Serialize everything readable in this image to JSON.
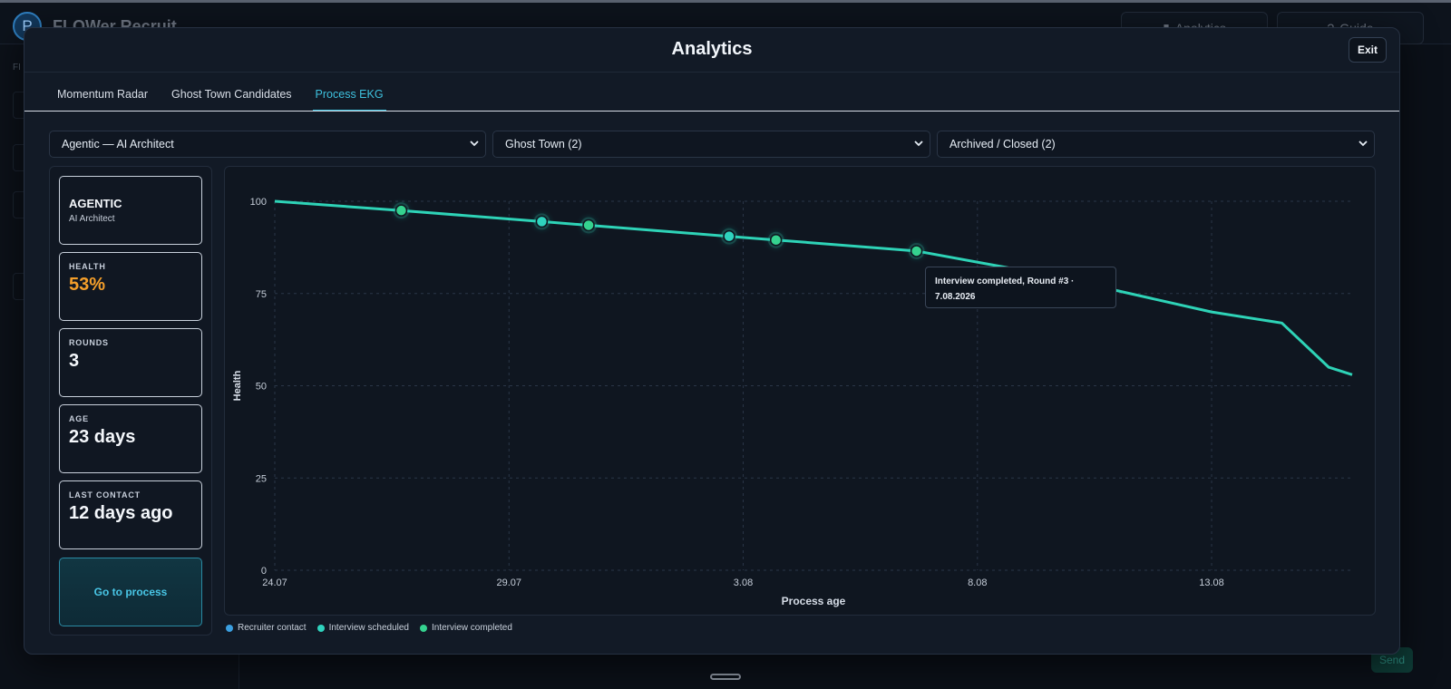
{
  "background": {
    "avatar_letter": "P",
    "brand": "FLOWer Recruit",
    "analytics_button": "Analytics",
    "guide_button": "Guide",
    "send_button": "Send"
  },
  "modal": {
    "title": "Analytics",
    "exit_label": "Exit",
    "tabs": [
      {
        "label": "Momentum Radar",
        "active": false
      },
      {
        "label": "Ghost Town Candidates",
        "active": false
      },
      {
        "label": "Process EKG",
        "active": true
      }
    ],
    "selects": {
      "process": "Agentic — AI Architect",
      "category": "Ghost Town (2)",
      "status": "Archived / Closed (2)"
    },
    "stats": {
      "company": "AGENTIC",
      "role": "AI Architect",
      "health_label": "HEALTH",
      "health_value": "53%",
      "rounds_label": "ROUNDS",
      "rounds_value": "3",
      "age_label": "AGE",
      "age_value": "23 days",
      "last_contact_label": "LAST CONTACT",
      "last_contact_value": "12 days ago",
      "go_button": "Go to process"
    },
    "tooltip": {
      "line1": "Interview completed, Round #3 ·",
      "line2": "7.08.2026"
    },
    "legend": [
      {
        "label": "Recruiter contact",
        "color": "#3b9fe0"
      },
      {
        "label": "Interview scheduled",
        "color": "#2fd3be"
      },
      {
        "label": "Interview completed",
        "color": "#35d28f"
      }
    ]
  },
  "chart_data": {
    "type": "line",
    "xlabel": "Process age",
    "ylabel": "Health",
    "x_ticks": [
      "24.07",
      "29.07",
      "3.08",
      "8.08",
      "13.08"
    ],
    "x_tick_days": [
      0,
      5,
      10,
      15,
      20
    ],
    "y_ticks": [
      0,
      25,
      50,
      75,
      100
    ],
    "ylim": [
      0,
      100
    ],
    "xlim_days": [
      0,
      23
    ],
    "grid": true,
    "line_color": "#2ed3b7",
    "series": [
      {
        "days": [
          0,
          2.7,
          5.7,
          6.7,
          9.7,
          10.7,
          13.7,
          16.5,
          20,
          21.5,
          22.5,
          23
        ],
        "values": [
          100,
          97.5,
          94.5,
          93.5,
          90.5,
          89.5,
          86.5,
          80,
          70,
          67,
          55,
          53
        ]
      }
    ],
    "events": [
      {
        "day": 2.7,
        "value": 97.5,
        "type": "Interview completed"
      },
      {
        "day": 5.7,
        "value": 94.5,
        "type": "Interview scheduled"
      },
      {
        "day": 6.7,
        "value": 93.5,
        "type": "Interview completed"
      },
      {
        "day": 9.7,
        "value": 90.5,
        "type": "Interview scheduled"
      },
      {
        "day": 10.7,
        "value": 89.5,
        "type": "Interview completed"
      },
      {
        "day": 13.7,
        "value": 86.5,
        "type": "Interview completed"
      }
    ]
  }
}
